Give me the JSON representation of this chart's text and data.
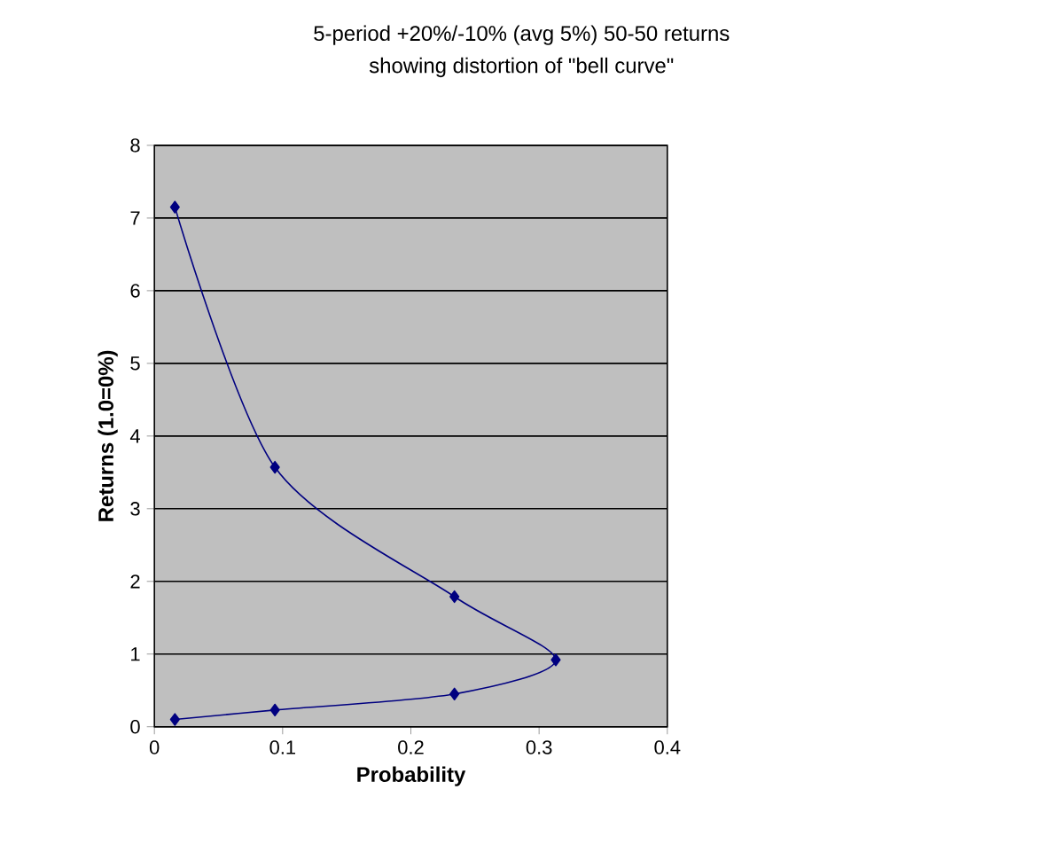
{
  "chart_data": {
    "type": "line",
    "title": "5-period +20%/-10% (avg 5%) 50-50 returns",
    "subtitle": "showing distortion of \"bell curve\"",
    "xlabel": "Probability",
    "ylabel": "Returns (1.0=0%)",
    "series": [
      {
        "color": "#000080",
        "x": [
          0.016,
          0.094,
          0.234,
          0.313,
          0.234,
          0.094,
          0.016
        ],
        "values": [
          7.15,
          3.57,
          1.79,
          0.92,
          0.45,
          0.23,
          0.1
        ]
      }
    ],
    "xlim": [
      0,
      0.4
    ],
    "xticks": [
      0,
      0.1,
      0.2,
      0.3,
      0.4
    ],
    "ylim": [
      0,
      8
    ],
    "yticks": [
      0,
      1,
      2,
      3,
      4,
      5,
      6,
      7,
      8
    ],
    "grid": "y",
    "marker": "diamond",
    "line_style": "solid"
  }
}
